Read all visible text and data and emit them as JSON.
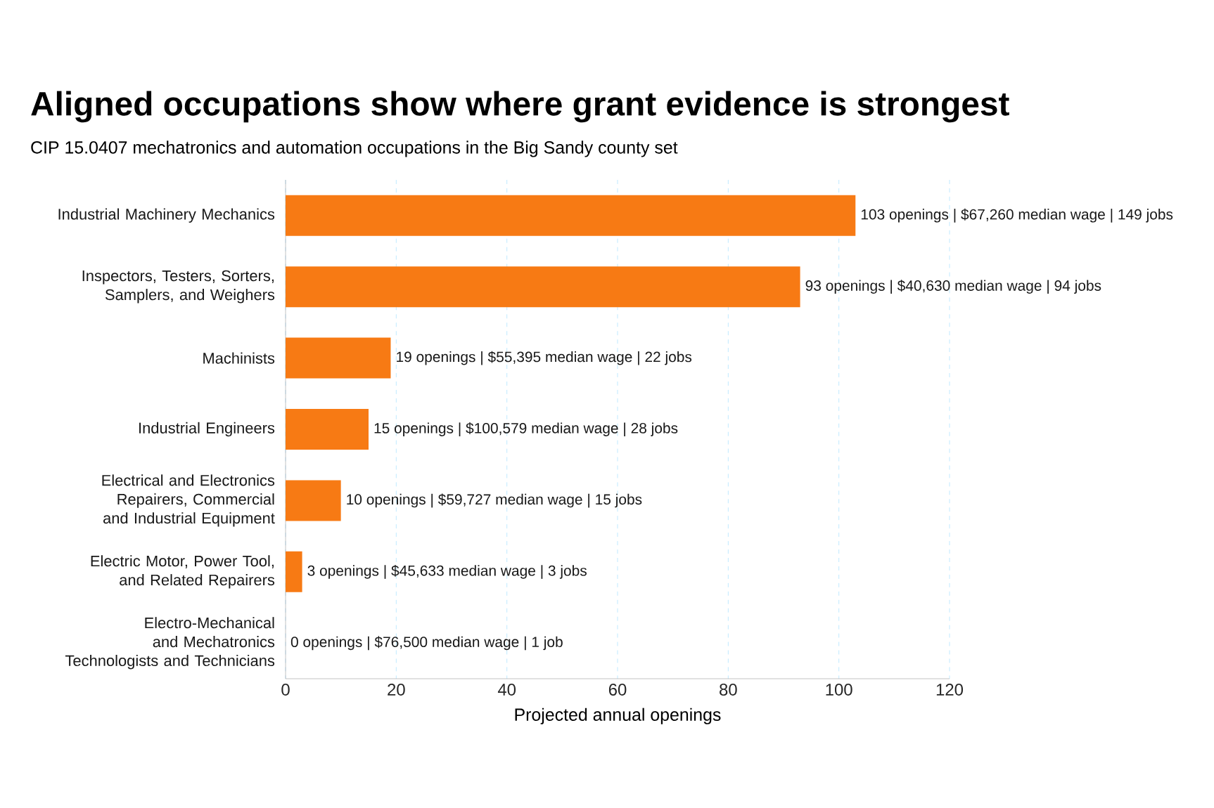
{
  "chart_data": {
    "type": "bar",
    "orientation": "horizontal",
    "title": "Aligned occupations show where grant evidence is strongest",
    "subtitle": "CIP 15.0407 mechatronics and automation occupations in the Big Sandy county set",
    "xlabel": "Projected annual openings",
    "categories": [
      "Industrial Machinery Mechanics",
      "Inspectors, Testers, Sorters, Samplers, and Weighers",
      "Machinists",
      "Industrial Engineers",
      "Electrical and Electronics Repairers, Commercial and Industrial Equipment",
      "Electric Motor, Power Tool, and Related Repairers",
      "Electro-Mechanical and Mechatronics Technologists and Technicians"
    ],
    "values": [
      103,
      93,
      19,
      15,
      10,
      3,
      0
    ],
    "value_labels": [
      "103 openings | $67,260 median wage | 149 jobs",
      "93 openings | $40,630 median wage | 94 jobs",
      "19 openings | $55,395 median wage | 22 jobs",
      "15 openings | $100,579 median wage | 28 jobs",
      "10 openings | $59,727 median wage | 15 jobs",
      "3 openings | $45,633 median wage | 3 jobs",
      "0 openings | $76,500 median wage | 1 job"
    ],
    "color": "#f77a14",
    "xlim": [
      0,
      120
    ],
    "xticks": [
      0,
      20,
      40,
      60,
      80,
      100,
      120
    ],
    "grid": "x"
  }
}
